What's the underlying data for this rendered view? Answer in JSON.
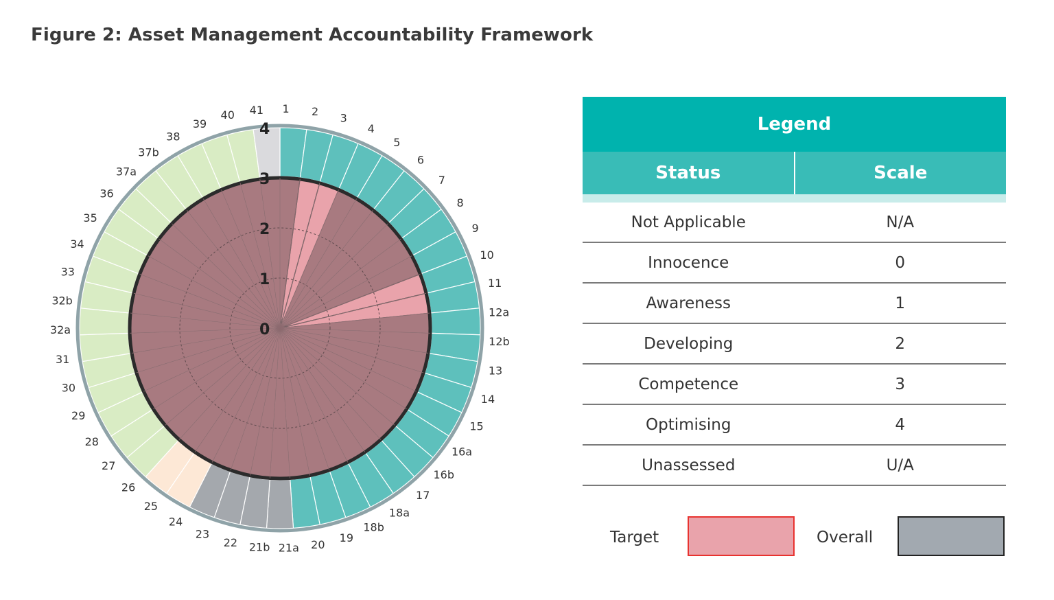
{
  "figure_title": "Figure 2: Asset Management Accountability Framework",
  "chart_data": {
    "type": "radar",
    "title": "Figure 2: Asset Management Accountability Framework",
    "rlim": [
      0,
      4
    ],
    "ring_labels": [
      "0",
      "1",
      "2",
      "3",
      "4"
    ],
    "categories": [
      "1",
      "2",
      "3",
      "4",
      "5",
      "6",
      "7",
      "8",
      "9",
      "10",
      "11",
      "12a",
      "12b",
      "13",
      "14",
      "15",
      "16a",
      "16b",
      "17",
      "18a",
      "18b",
      "19",
      "20",
      "21a",
      "21b",
      "22",
      "23",
      "24",
      "25",
      "26",
      "27",
      "28",
      "29",
      "30",
      "31",
      "32a",
      "32b",
      "33",
      "34",
      "35",
      "36",
      "37a",
      "37b",
      "38",
      "39",
      "40",
      "41"
    ],
    "category_groups": [
      {
        "from": "1",
        "to": "20",
        "color": "#5ec0bc"
      },
      {
        "from": "21a",
        "to": "23",
        "color": "#a4a8ad"
      },
      {
        "from": "24",
        "to": "25",
        "color": "#fde8d6"
      },
      {
        "from": "26",
        "to": "40",
        "color": "#d9ecc4"
      },
      {
        "from": "41",
        "to": "41",
        "color": "#dadadd"
      }
    ],
    "series": [
      {
        "name": "Target",
        "values": [
          3,
          3,
          3,
          3,
          3,
          3,
          3,
          3,
          3,
          3,
          3,
          3,
          3,
          3,
          3,
          3,
          3,
          3,
          3,
          3,
          3,
          3,
          3,
          3,
          3,
          3,
          3,
          3,
          3,
          3,
          3,
          3,
          3,
          3,
          3,
          3,
          3,
          3,
          3,
          3,
          3,
          3,
          3,
          3,
          3,
          3,
          3
        ]
      },
      {
        "name": "Overall",
        "values": [
          3,
          0,
          0,
          3,
          3,
          3,
          3,
          3,
          3,
          0,
          0,
          3,
          3,
          3,
          3,
          3,
          3,
          3,
          3,
          3,
          3,
          3,
          3,
          3,
          3,
          3,
          3,
          3,
          3,
          3,
          3,
          3,
          3,
          3,
          3,
          3,
          3,
          3,
          3,
          3,
          3,
          3,
          3,
          3,
          3,
          3,
          3
        ]
      }
    ],
    "colors": {
      "target_fill": "#e9a3ab",
      "target_edge": "#e8322f",
      "overall_fill": "#a2a9b0",
      "overall_edge": "#222222",
      "combined": "#a87a80"
    }
  },
  "legend": {
    "title": "Legend",
    "columns": [
      "Status",
      "Scale"
    ],
    "rows": [
      {
        "status": "Not Applicable",
        "scale": "N/A"
      },
      {
        "status": "Innocence",
        "scale": "0"
      },
      {
        "status": "Awareness",
        "scale": "1"
      },
      {
        "status": "Developing",
        "scale": "2"
      },
      {
        "status": "Competence",
        "scale": "3"
      },
      {
        "status": "Optimising",
        "scale": "4"
      },
      {
        "status": "Unassessed",
        "scale": "U/A"
      }
    ],
    "target_label": "Target",
    "overall_label": "Overall"
  }
}
